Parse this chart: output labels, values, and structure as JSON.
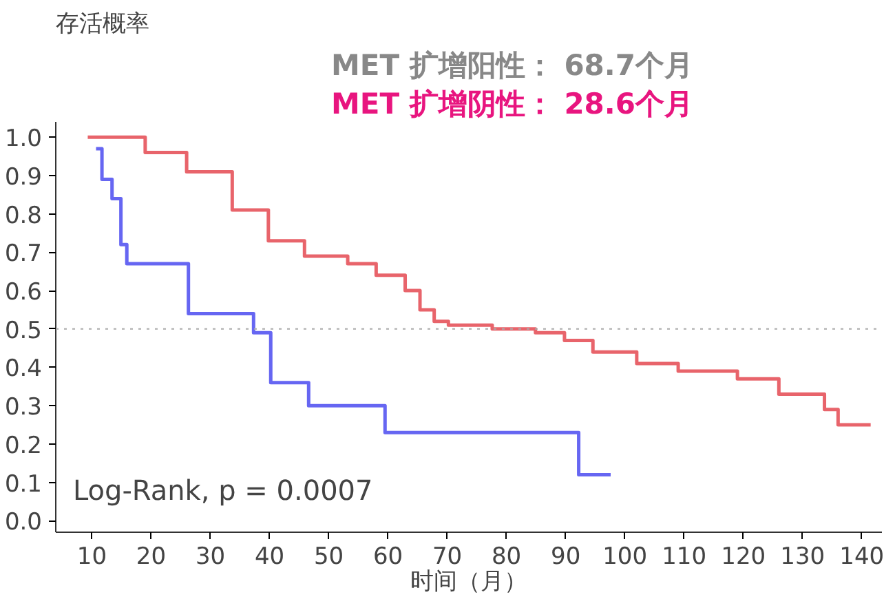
{
  "chart_data": {
    "type": "step",
    "xlabel": "时间（月）",
    "ylabel": "存活概率",
    "series": [
      {
        "color": "#3333ee",
        "x": [
          10.7,
          11.7,
          13.4,
          14.9,
          15.9,
          26.3,
          37.3,
          40.2,
          46.6,
          59.5,
          92.2,
          97.6
        ],
        "values": [
          0.97,
          0.89,
          0.84,
          0.72,
          0.67,
          0.54,
          0.49,
          0.36,
          0.3,
          0.23,
          0.12,
          0.12
        ]
      },
      {
        "color": "#e0303a",
        "x": [
          9.3,
          19,
          26,
          33.7,
          39.8,
          45.9,
          53.2,
          58,
          62.9,
          65.4,
          67.8,
          70.2,
          77.6,
          84.9,
          89.8,
          94.6,
          102,
          109,
          119,
          126,
          133.7,
          136,
          141.5
        ],
        "values": [
          1.0,
          0.96,
          0.91,
          0.81,
          0.73,
          0.69,
          0.67,
          0.64,
          0.6,
          0.55,
          0.52,
          0.51,
          0.5,
          0.49,
          0.47,
          0.44,
          0.41,
          0.39,
          0.37,
          0.33,
          0.29,
          0.25,
          0.25
        ]
      }
    ],
    "xlim": [
      3.9,
      143.4
    ],
    "ylim": [
      -0.03,
      1.04
    ],
    "xticks": [
      10,
      20,
      30,
      40,
      50,
      60,
      70,
      80,
      90,
      100,
      110,
      120,
      130,
      140
    ],
    "yticks": [
      {
        "value": 0,
        "label": "0.0"
      },
      0.1,
      0.2,
      0.3,
      0.4,
      0.5,
      0.6,
      0.7,
      0.8,
      0.9,
      {
        "value": 1,
        "label": "1.0"
      }
    ],
    "ref_lines": [
      {
        "axis": "y",
        "value": 0.5,
        "label": null,
        "color": "#aaaaaa",
        "line_style": "dotted"
      }
    ],
    "annotations": [
      "MET 扩增阳性：   68.7个月",
      "MET 扩增阴性：   28.6个月",
      "Log-Rank, p  = 0.0007"
    ],
    "grid": false
  }
}
